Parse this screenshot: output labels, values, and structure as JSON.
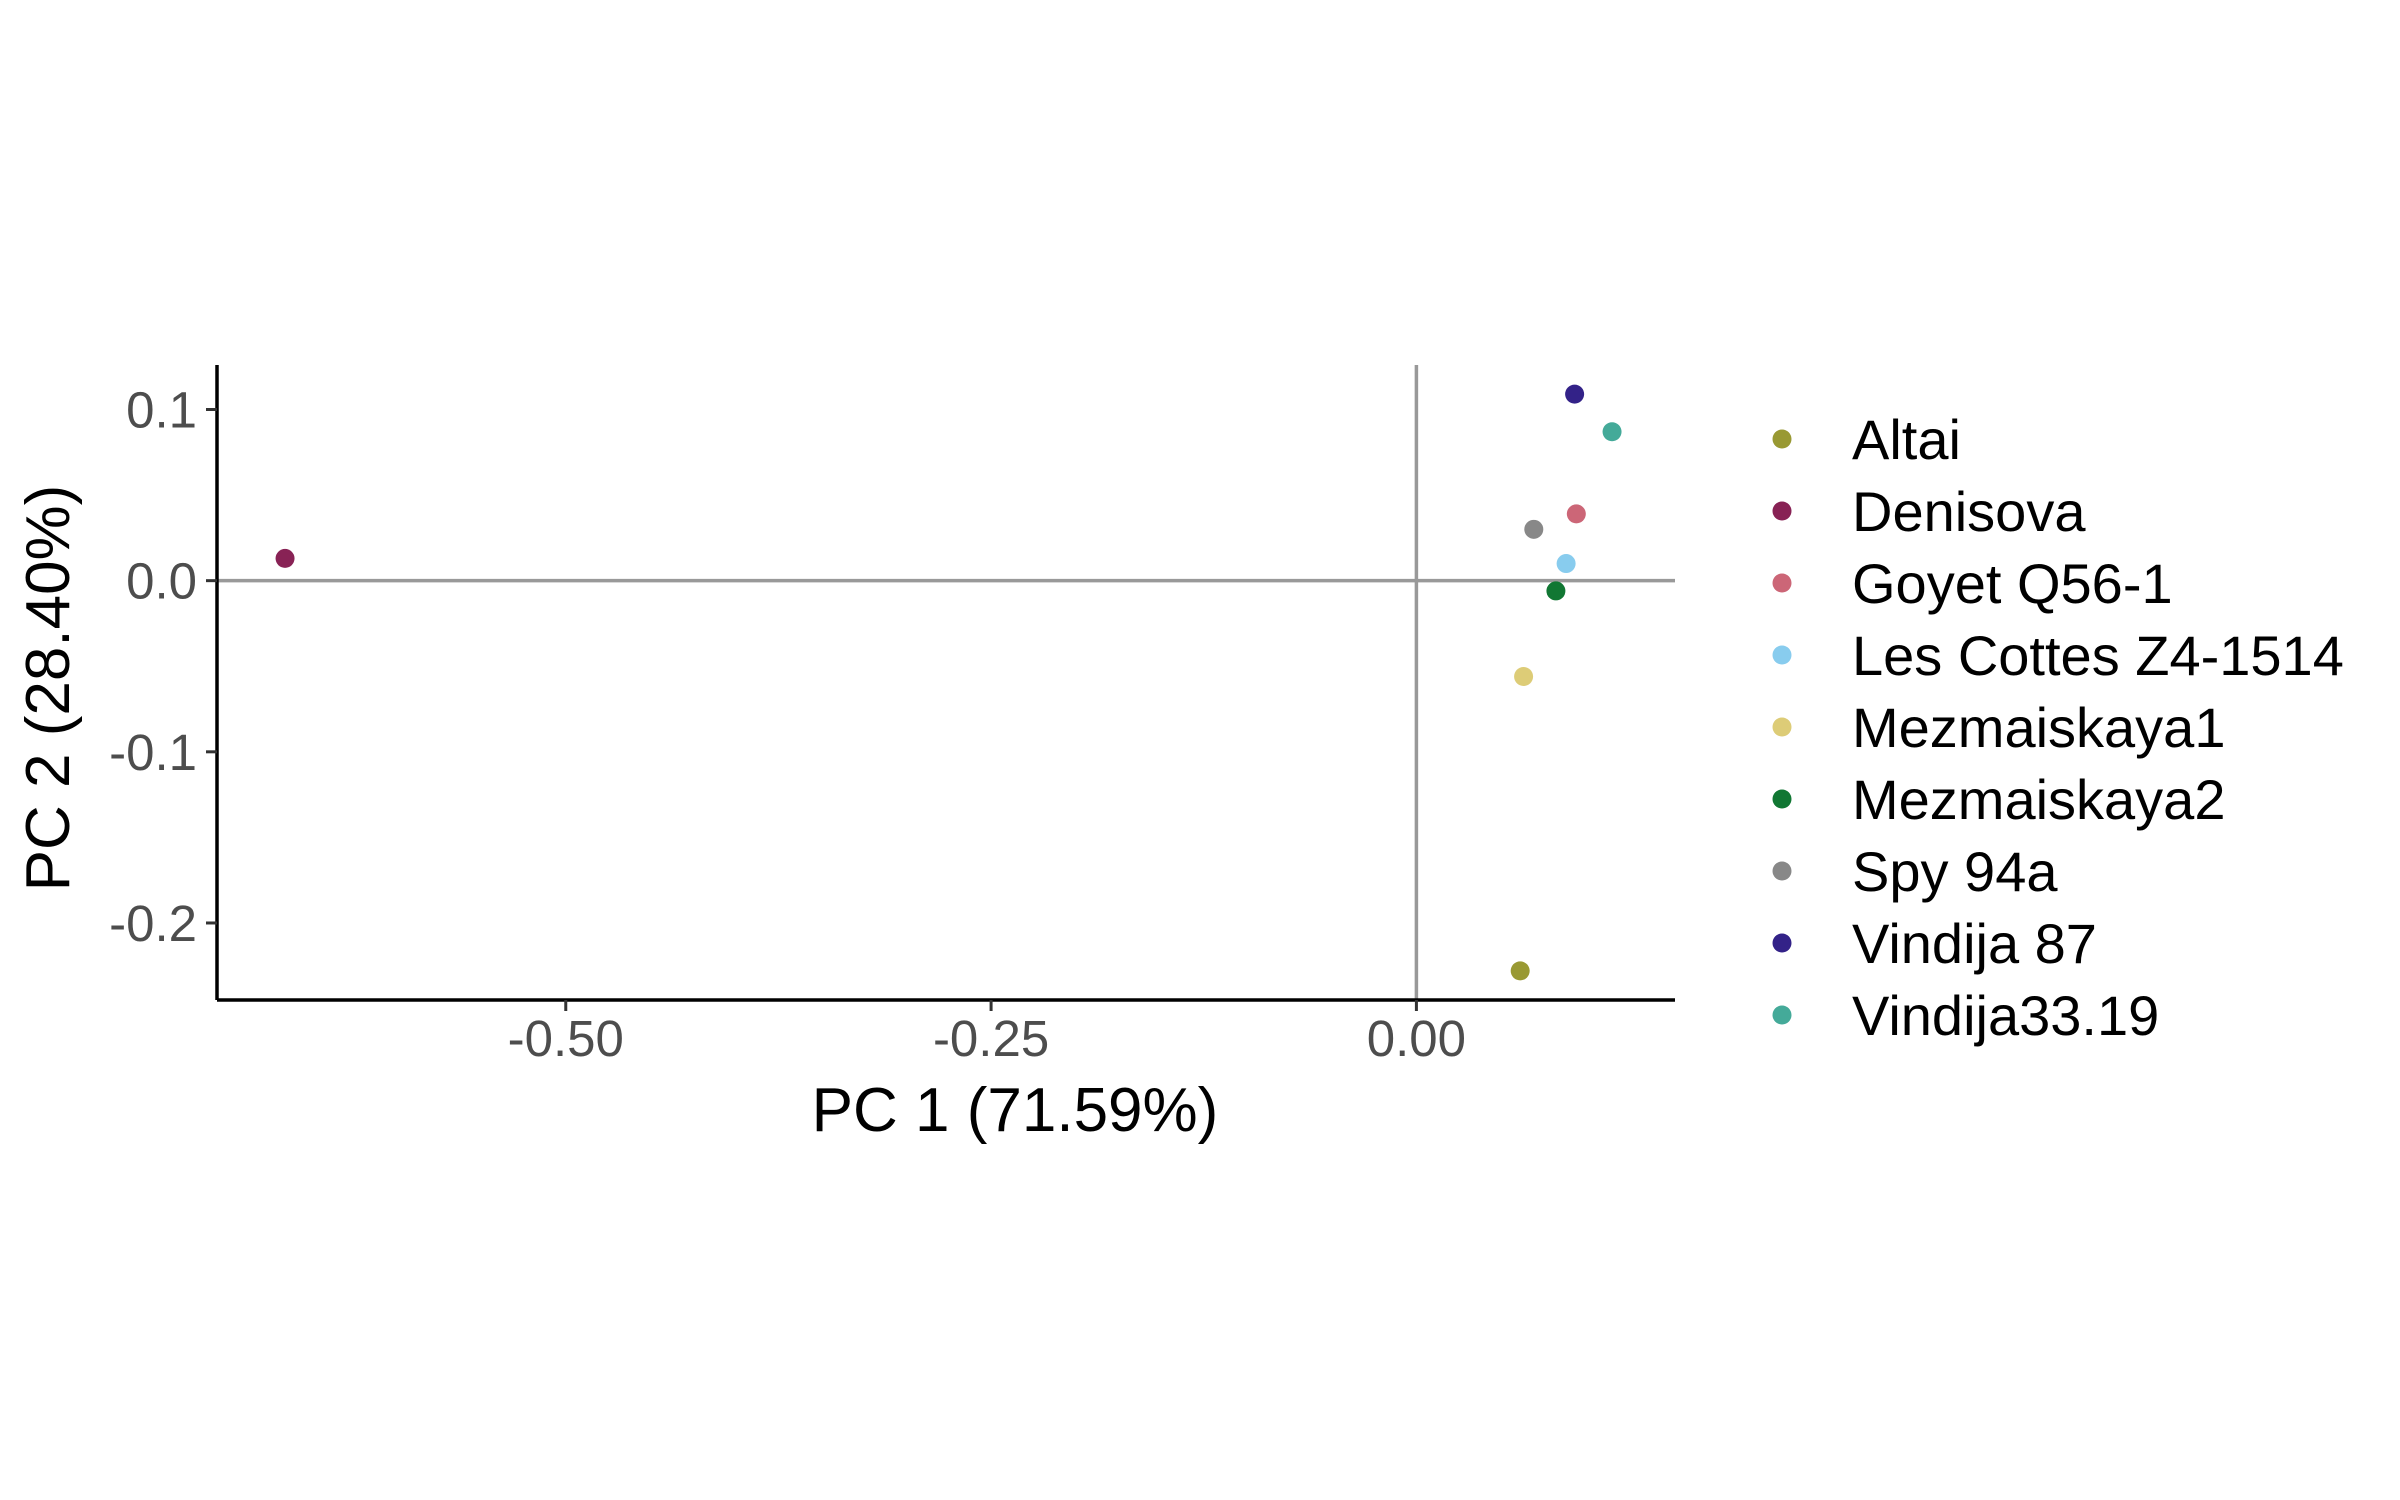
{
  "chart_data": {
    "type": "scatter",
    "title": "",
    "xlabel": "PC 1 (71.59%)",
    "ylabel": "PC 2 (28.40%)",
    "xlim": [
      -0.705,
      0.152
    ],
    "ylim": [
      -0.245,
      0.126
    ],
    "xticks": [
      -0.5,
      -0.25,
      0.0
    ],
    "xtick_labels": [
      "-0.50",
      "-0.25",
      "0.00"
    ],
    "yticks": [
      0.1,
      0.0,
      -0.1,
      -0.2
    ],
    "ytick_labels": [
      "0.1",
      "0.0",
      "-0.1",
      "-0.2"
    ],
    "reference_lines": {
      "x": 0,
      "y": 0,
      "color": "#999999"
    },
    "grid": false,
    "legend_position": "right",
    "series": [
      {
        "name": "Altai",
        "color": "#999933",
        "x": 0.061,
        "y": -0.228
      },
      {
        "name": "Denisova",
        "color": "#882255",
        "x": -0.665,
        "y": 0.013
      },
      {
        "name": "Goyet Q56-1",
        "color": "#CC6677",
        "x": 0.094,
        "y": 0.039
      },
      {
        "name": "Les Cottes Z4-1514",
        "color": "#88CCEE",
        "x": 0.088,
        "y": 0.01
      },
      {
        "name": "Mezmaiskaya1",
        "color": "#DDCC77",
        "x": 0.063,
        "y": -0.056
      },
      {
        "name": "Mezmaiskaya2",
        "color": "#117733",
        "x": 0.082,
        "y": -0.006
      },
      {
        "name": "Spy 94a",
        "color": "#888888",
        "x": 0.069,
        "y": 0.03
      },
      {
        "name": "Vindija 87",
        "color": "#332288",
        "x": 0.093,
        "y": 0.109
      },
      {
        "name": "Vindija33.19",
        "color": "#44AA99",
        "x": 0.115,
        "y": 0.087
      }
    ]
  }
}
